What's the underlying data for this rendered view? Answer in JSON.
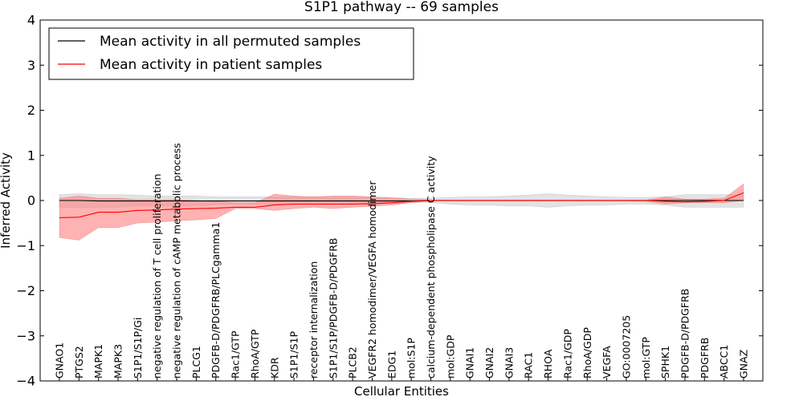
{
  "chart_data": {
    "type": "line",
    "title": "S1P1 pathway -- 69 samples",
    "xlabel": "Cellular Entities",
    "ylabel": "Inferred Activity",
    "ylim": [
      -4,
      4
    ],
    "yticks": [
      "4",
      "3",
      "2",
      "1",
      "0",
      "−1",
      "−2",
      "−3",
      "−4"
    ],
    "legend_position": "top-left",
    "categories": [
      "GNAO1",
      "PTGS2",
      "MAPK1",
      "MAPK3",
      "S1P1/S1P/Gi",
      "negative regulation of T cell proliferation",
      "negative regulation of cAMP metabolic process",
      "PLCG1",
      "PDGFB-D/PDGFRB/PLCgamma1",
      "Rac1/GTP",
      "RhoA/GTP",
      "KDR",
      "S1P1/S1P",
      "receptor internalization",
      "S1P1/S1P/PDGFB-D/PDGFRB",
      "PLCB2",
      "VEGFR2 homodimer/VEGFA homodimer",
      "EDG1",
      "mol:S1P",
      "calcium-dependent phospholipase C activity",
      "mol:GDP",
      "GNAI1",
      "GNAI2",
      "GNAI3",
      "RAC1",
      "RHOA",
      "Rac1/GDP",
      "RhoA/GDP",
      "VEGFA",
      "GO:0007205",
      "mol:GTP",
      "SPHK1",
      "PDGFB-D/PDGFRB",
      "PDGFRB",
      "ABCC1",
      "GNAZ"
    ],
    "series": [
      {
        "name": "Mean activity in all permuted samples",
        "color": "#000000",
        "values": [
          0.0,
          0.0,
          -0.01,
          -0.01,
          -0.01,
          -0.01,
          -0.01,
          -0.01,
          -0.01,
          -0.01,
          -0.01,
          -0.01,
          -0.01,
          -0.01,
          -0.01,
          -0.01,
          -0.01,
          -0.01,
          -0.01,
          0.0,
          0.0,
          0.0,
          0.0,
          0.0,
          0.0,
          0.0,
          0.0,
          0.0,
          0.0,
          0.0,
          0.0,
          0.0,
          0.0,
          0.0,
          0.0,
          0.0
        ],
        "lower": [
          -0.15,
          -0.16,
          -0.15,
          -0.15,
          -0.12,
          -0.12,
          -0.12,
          -0.12,
          -0.1,
          -0.08,
          -0.08,
          -0.08,
          -0.08,
          -0.08,
          -0.08,
          -0.08,
          -0.08,
          -0.07,
          -0.05,
          -0.05,
          -0.08,
          -0.1,
          -0.1,
          -0.12,
          -0.12,
          -0.15,
          -0.12,
          -0.1,
          -0.1,
          -0.08,
          -0.08,
          -0.1,
          -0.15,
          -0.15,
          -0.15,
          -0.15
        ],
        "upper": [
          0.13,
          0.15,
          0.13,
          0.13,
          0.12,
          0.1,
          0.1,
          0.1,
          0.08,
          0.08,
          0.08,
          0.08,
          0.08,
          0.08,
          0.08,
          0.08,
          0.07,
          0.06,
          0.05,
          0.05,
          0.07,
          0.08,
          0.08,
          0.1,
          0.12,
          0.15,
          0.12,
          0.1,
          0.08,
          0.07,
          0.07,
          0.08,
          0.13,
          0.13,
          0.13,
          0.13
        ]
      },
      {
        "name": "Mean activity in patient samples",
        "color": "#ff0000",
        "fill": "#ff7f7f",
        "values": [
          -0.38,
          -0.37,
          -0.26,
          -0.26,
          -0.22,
          -0.21,
          -0.19,
          -0.18,
          -0.17,
          -0.15,
          -0.15,
          -0.1,
          -0.08,
          -0.08,
          -0.08,
          -0.08,
          -0.07,
          -0.05,
          -0.02,
          0.0,
          0.0,
          0.0,
          0.0,
          0.0,
          0.0,
          0.0,
          0.0,
          0.0,
          0.0,
          0.0,
          0.0,
          -0.02,
          -0.03,
          -0.02,
          -0.0,
          0.17
        ],
        "lower": [
          -0.82,
          -0.88,
          -0.6,
          -0.6,
          -0.5,
          -0.48,
          -0.45,
          -0.43,
          -0.4,
          -0.18,
          -0.18,
          -0.22,
          -0.18,
          -0.15,
          -0.18,
          -0.15,
          -0.13,
          -0.1,
          -0.05,
          -0.01,
          -0.01,
          -0.01,
          -0.01,
          -0.01,
          -0.01,
          -0.01,
          -0.01,
          -0.01,
          -0.01,
          -0.01,
          -0.02,
          -0.08,
          -0.05,
          -0.05,
          -0.05,
          0.0
        ],
        "upper": [
          0.05,
          0.1,
          0.05,
          0.05,
          0.02,
          0.02,
          0.02,
          0.0,
          -0.02,
          -0.05,
          -0.05,
          0.14,
          0.1,
          0.08,
          0.1,
          0.1,
          0.08,
          0.06,
          0.03,
          0.01,
          0.01,
          0.01,
          0.01,
          0.01,
          0.01,
          0.01,
          0.01,
          0.01,
          0.01,
          0.01,
          0.01,
          0.08,
          0.03,
          0.03,
          0.05,
          0.37
        ]
      }
    ]
  }
}
